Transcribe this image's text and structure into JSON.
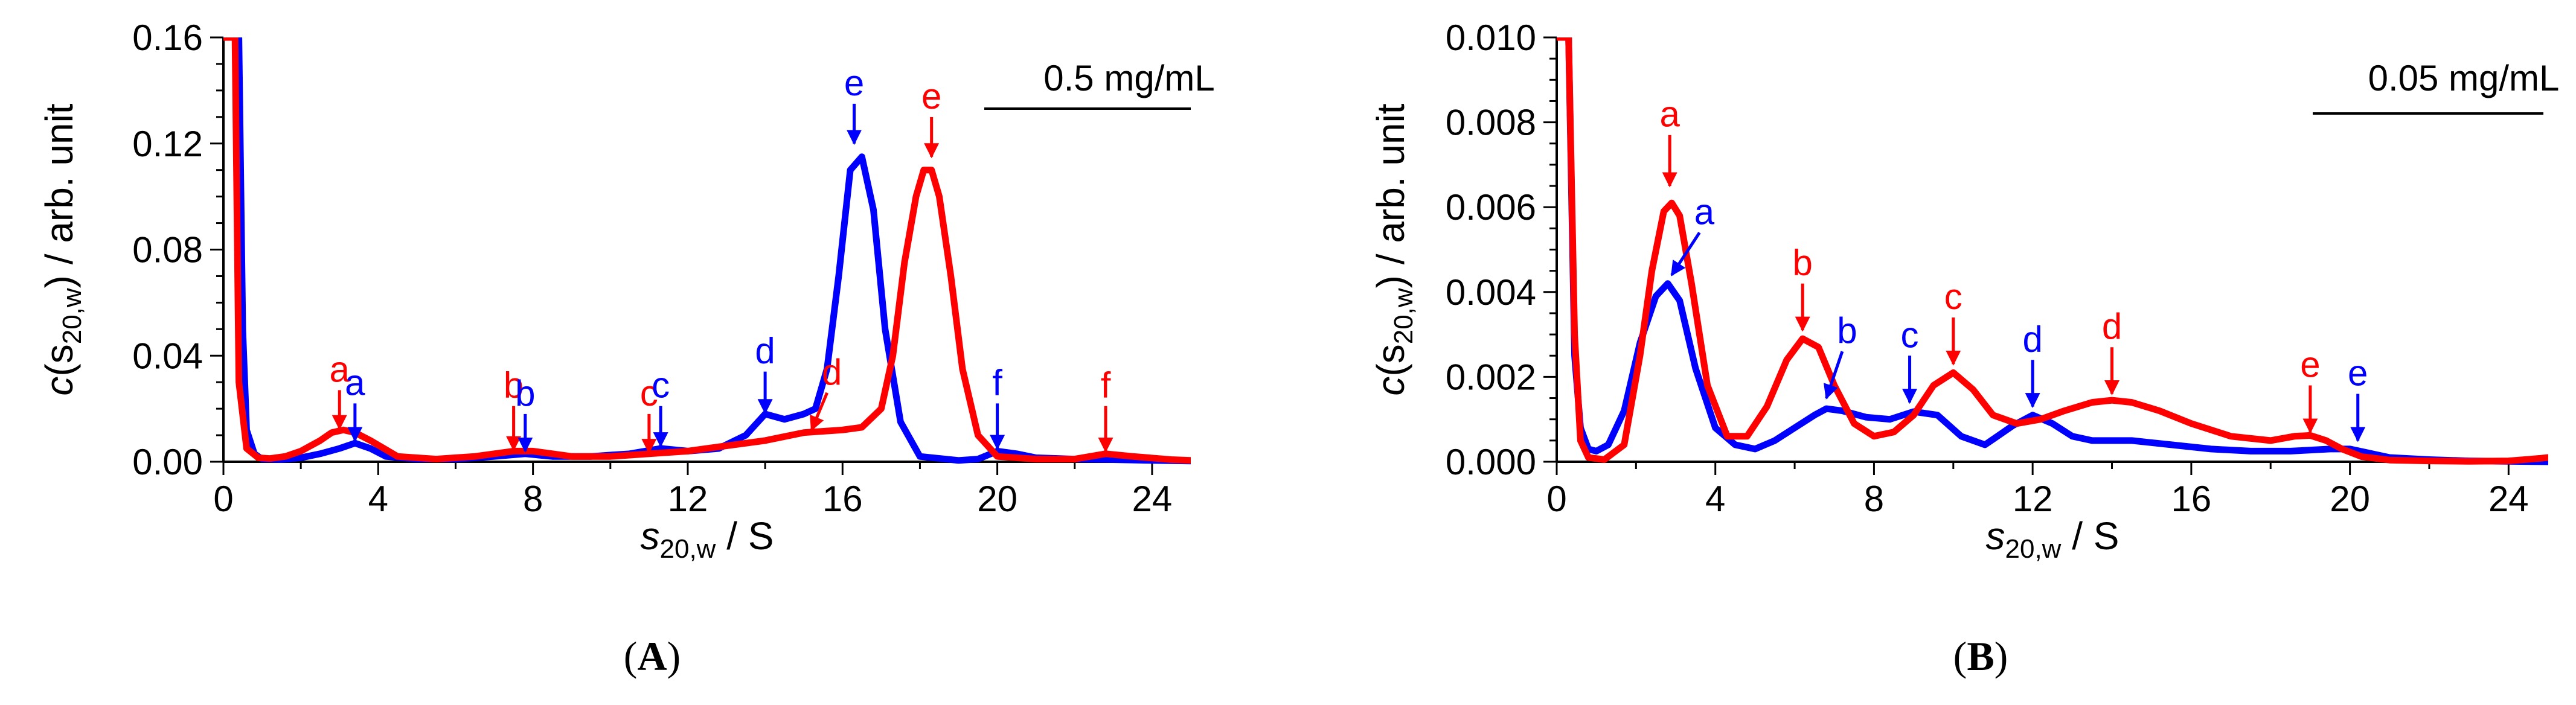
{
  "colors": {
    "blue": "#0000ff",
    "red": "#ff0000",
    "axis": "#000000"
  },
  "chart_data": [
    {
      "type": "line",
      "panel_label": "A",
      "concentration_label": "0.5 mg/mL",
      "xlabel_main": "s",
      "xlabel_sub": "20,w",
      "xlabel_unit": " / S",
      "ylabel_prefix": "c(s",
      "ylabel_sub": "20,w",
      "ylabel_suffix": ") / arb. unit",
      "xlim": [
        0,
        25
      ],
      "ylim": [
        0,
        0.16
      ],
      "x_ticks": [
        0,
        4,
        8,
        12,
        16,
        20,
        24
      ],
      "x_tick_labels": [
        "0",
        "4",
        "8",
        "12",
        "16",
        "20",
        "24"
      ],
      "y_ticks": [
        0,
        0.04,
        0.08,
        0.12,
        0.16
      ],
      "y_tick_labels": [
        "0.00",
        "0.04",
        "0.08",
        "0.12",
        "0.16"
      ],
      "series": [
        {
          "name": "blue",
          "color": "#0000ff",
          "x": [
            0,
            0.2,
            0.3,
            0.4,
            0.5,
            0.6,
            0.8,
            1.0,
            1.5,
            2.0,
            2.5,
            3.0,
            3.4,
            3.8,
            4.2,
            5.0,
            6.0,
            7.0,
            7.8,
            8.5,
            9.5,
            10.5,
            11.3,
            12.0,
            12.8,
            13.5,
            14.0,
            14.5,
            15.0,
            15.3,
            15.6,
            15.9,
            16.2,
            16.5,
            16.8,
            17.1,
            17.5,
            18.0,
            19.0,
            19.5,
            20.0,
            20.5,
            21.0,
            22.0,
            23.0,
            24.0,
            25.0
          ],
          "y": [
            0.16,
            0.16,
            0.16,
            0.16,
            0.05,
            0.012,
            0.003,
            0.001,
            0.0008,
            0.0015,
            0.003,
            0.005,
            0.007,
            0.005,
            0.002,
            0.001,
            0.001,
            0.002,
            0.003,
            0.002,
            0.002,
            0.003,
            0.005,
            0.004,
            0.005,
            0.01,
            0.018,
            0.016,
            0.018,
            0.02,
            0.035,
            0.07,
            0.11,
            0.115,
            0.095,
            0.05,
            0.015,
            0.002,
            0.0005,
            0.001,
            0.004,
            0.003,
            0.0015,
            0.001,
            0.0008,
            0.0005,
            0.0003
          ]
        },
        {
          "name": "red",
          "color": "#ff0000",
          "x": [
            0,
            0.1,
            0.2,
            0.3,
            0.4,
            0.6,
            0.9,
            1.2,
            1.6,
            2.0,
            2.5,
            2.8,
            3.1,
            3.4,
            3.8,
            4.5,
            5.5,
            6.5,
            7.0,
            7.5,
            8.0,
            9.0,
            10.0,
            11.0,
            12.0,
            13.0,
            14.0,
            15.0,
            16.0,
            16.5,
            17.0,
            17.3,
            17.6,
            17.9,
            18.1,
            18.3,
            18.5,
            18.8,
            19.1,
            19.5,
            20.0,
            21.0,
            22.0,
            22.8,
            23.5,
            24.5,
            25.0
          ],
          "y": [
            0.16,
            0.16,
            0.16,
            0.16,
            0.03,
            0.005,
            0.0015,
            0.0012,
            0.002,
            0.004,
            0.008,
            0.011,
            0.012,
            0.011,
            0.008,
            0.002,
            0.001,
            0.002,
            0.003,
            0.004,
            0.004,
            0.002,
            0.002,
            0.003,
            0.004,
            0.006,
            0.008,
            0.011,
            0.012,
            0.013,
            0.02,
            0.04,
            0.075,
            0.1,
            0.11,
            0.11,
            0.1,
            0.07,
            0.035,
            0.01,
            0.002,
            0.001,
            0.001,
            0.003,
            0.002,
            0.0008,
            0.0005
          ]
        }
      ],
      "annotations": [
        {
          "label": "a",
          "color": "#ff0000",
          "x": 3.0,
          "y_tip": 0.0125,
          "y_tail": 0.027
        },
        {
          "label": "a",
          "color": "#0000ff",
          "x": 3.4,
          "y_tip": 0.008,
          "y_tail": 0.022
        },
        {
          "label": "b",
          "color": "#ff0000",
          "x": 7.5,
          "y_tip": 0.0045,
          "y_tail": 0.021
        },
        {
          "label": "b",
          "color": "#0000ff",
          "x": 7.8,
          "y_tip": 0.004,
          "y_tail": 0.018
        },
        {
          "label": "c",
          "color": "#ff0000",
          "x": 11.0,
          "y_tip": 0.0035,
          "y_tail": 0.018
        },
        {
          "label": "c",
          "color": "#0000ff",
          "x": 11.3,
          "y_tip": 0.006,
          "y_tail": 0.021
        },
        {
          "label": "d",
          "color": "#0000ff",
          "x": 14.0,
          "y_tip": 0.0185,
          "y_tail": 0.034
        },
        {
          "label": "d",
          "color": "#ff0000",
          "x": 15.2,
          "y_tip": 0.012,
          "y_tail": 0.026,
          "dx": 0.4
        },
        {
          "label": "e",
          "color": "#0000ff",
          "x": 16.3,
          "y_tip": 0.12,
          "y_tail": 0.135
        },
        {
          "label": "e",
          "color": "#ff0000",
          "x": 18.3,
          "y_tip": 0.115,
          "y_tail": 0.13
        },
        {
          "label": "f",
          "color": "#0000ff",
          "x": 20.0,
          "y_tip": 0.005,
          "y_tail": 0.022
        },
        {
          "label": "f",
          "color": "#ff0000",
          "x": 22.8,
          "y_tip": 0.004,
          "y_tail": 0.021
        }
      ]
    },
    {
      "type": "line",
      "panel_label": "B",
      "concentration_label": "0.05 mg/mL",
      "xlabel_main": "s",
      "xlabel_sub": "20,w",
      "xlabel_unit": " / S",
      "ylabel_prefix": "c(s",
      "ylabel_sub": "20,w",
      "ylabel_suffix": ") / arb. unit",
      "xlim": [
        0,
        25
      ],
      "ylim": [
        0,
        0.01
      ],
      "x_ticks": [
        0,
        4,
        8,
        12,
        16,
        20,
        24
      ],
      "x_tick_labels": [
        "0",
        "4",
        "8",
        "12",
        "16",
        "20",
        "24"
      ],
      "y_ticks": [
        0,
        0.002,
        0.004,
        0.006,
        0.008,
        0.01
      ],
      "y_tick_labels": [
        "0.000",
        "0.002",
        "0.004",
        "0.006",
        "0.008",
        "0.010"
      ],
      "series": [
        {
          "name": "blue",
          "color": "#0000ff",
          "x": [
            0,
            0.2,
            0.3,
            0.45,
            0.6,
            0.8,
            1.0,
            1.3,
            1.7,
            2.1,
            2.5,
            2.8,
            3.1,
            3.5,
            4.0,
            4.5,
            5.0,
            5.5,
            6.0,
            6.5,
            6.8,
            7.2,
            7.8,
            8.4,
            9.0,
            9.6,
            10.2,
            10.8,
            11.5,
            12.0,
            12.5,
            13.0,
            13.5,
            14.5,
            15.5,
            16.5,
            17.5,
            18.5,
            19.5,
            20.0,
            20.5,
            21.0,
            22.0,
            23.0,
            24.0,
            25.0
          ],
          "y": [
            0.01,
            0.01,
            0.01,
            0.0025,
            0.0008,
            0.0003,
            0.00025,
            0.0004,
            0.0012,
            0.0028,
            0.0039,
            0.0042,
            0.0038,
            0.0022,
            0.0008,
            0.0004,
            0.0003,
            0.0005,
            0.0008,
            0.0011,
            0.00125,
            0.0012,
            0.00105,
            0.001,
            0.00118,
            0.0011,
            0.0006,
            0.0004,
            0.00085,
            0.0011,
            0.0009,
            0.0006,
            0.0005,
            0.0005,
            0.0004,
            0.0003,
            0.00025,
            0.00025,
            0.0003,
            0.0003,
            0.0002,
            0.0001,
            5e-05,
            2e-05,
            1e-05,
            0.0
          ]
        },
        {
          "name": "red",
          "color": "#ff0000",
          "x": [
            0,
            0.1,
            0.2,
            0.3,
            0.45,
            0.6,
            0.8,
            1.2,
            1.7,
            2.1,
            2.4,
            2.7,
            2.9,
            3.1,
            3.4,
            3.8,
            4.3,
            4.8,
            5.3,
            5.8,
            6.2,
            6.6,
            7.0,
            7.5,
            8.0,
            8.5,
            9.0,
            9.5,
            10.0,
            10.5,
            11.0,
            11.6,
            12.2,
            12.8,
            13.5,
            14.0,
            14.5,
            15.2,
            16.0,
            17.0,
            18.0,
            18.6,
            19.0,
            19.4,
            19.8,
            20.3,
            21.0,
            22.0,
            23.0,
            24.0,
            24.8,
            25.0
          ],
          "y": [
            0.01,
            0.01,
            0.01,
            0.01,
            0.003,
            0.0005,
            0.0001,
            5e-05,
            0.0004,
            0.0025,
            0.0045,
            0.0059,
            0.0061,
            0.0058,
            0.0042,
            0.0018,
            0.0006,
            0.0006,
            0.0013,
            0.0024,
            0.0029,
            0.0027,
            0.0018,
            0.0009,
            0.0006,
            0.0007,
            0.0011,
            0.0018,
            0.0021,
            0.0017,
            0.0011,
            0.0009,
            0.001,
            0.0012,
            0.0014,
            0.00145,
            0.0014,
            0.0012,
            0.0009,
            0.0006,
            0.0005,
            0.0006,
            0.00062,
            0.0005,
            0.0003,
            0.00012,
            4e-05,
            2e-05,
            1e-05,
            2e-05,
            8e-05,
            0.0001
          ]
        }
      ],
      "annotations": [
        {
          "label": "a",
          "color": "#ff0000",
          "x": 2.85,
          "y_tip": 0.0065,
          "y_tail": 0.0077
        },
        {
          "label": "a",
          "color": "#0000ff",
          "x": 2.9,
          "y_tip": 0.0044,
          "y_tail": 0.0054,
          "dx": 0.7
        },
        {
          "label": "b",
          "color": "#ff0000",
          "x": 6.2,
          "y_tip": 0.0031,
          "y_tail": 0.0042
        },
        {
          "label": "b",
          "color": "#0000ff",
          "x": 6.8,
          "y_tip": 0.0015,
          "y_tail": 0.0026,
          "dx": 0.4
        },
        {
          "label": "c",
          "color": "#0000ff",
          "x": 8.9,
          "y_tip": 0.0014,
          "y_tail": 0.0025
        },
        {
          "label": "c",
          "color": "#ff0000",
          "x": 10.0,
          "y_tip": 0.0023,
          "y_tail": 0.0034
        },
        {
          "label": "d",
          "color": "#0000ff",
          "x": 12.0,
          "y_tip": 0.0013,
          "y_tail": 0.0024
        },
        {
          "label": "d",
          "color": "#ff0000",
          "x": 14.0,
          "y_tip": 0.0016,
          "y_tail": 0.0027
        },
        {
          "label": "e",
          "color": "#ff0000",
          "x": 19.0,
          "y_tip": 0.0007,
          "y_tail": 0.0018
        },
        {
          "label": "e",
          "color": "#0000ff",
          "x": 20.2,
          "y_tip": 0.0005,
          "y_tail": 0.0016
        }
      ]
    }
  ]
}
